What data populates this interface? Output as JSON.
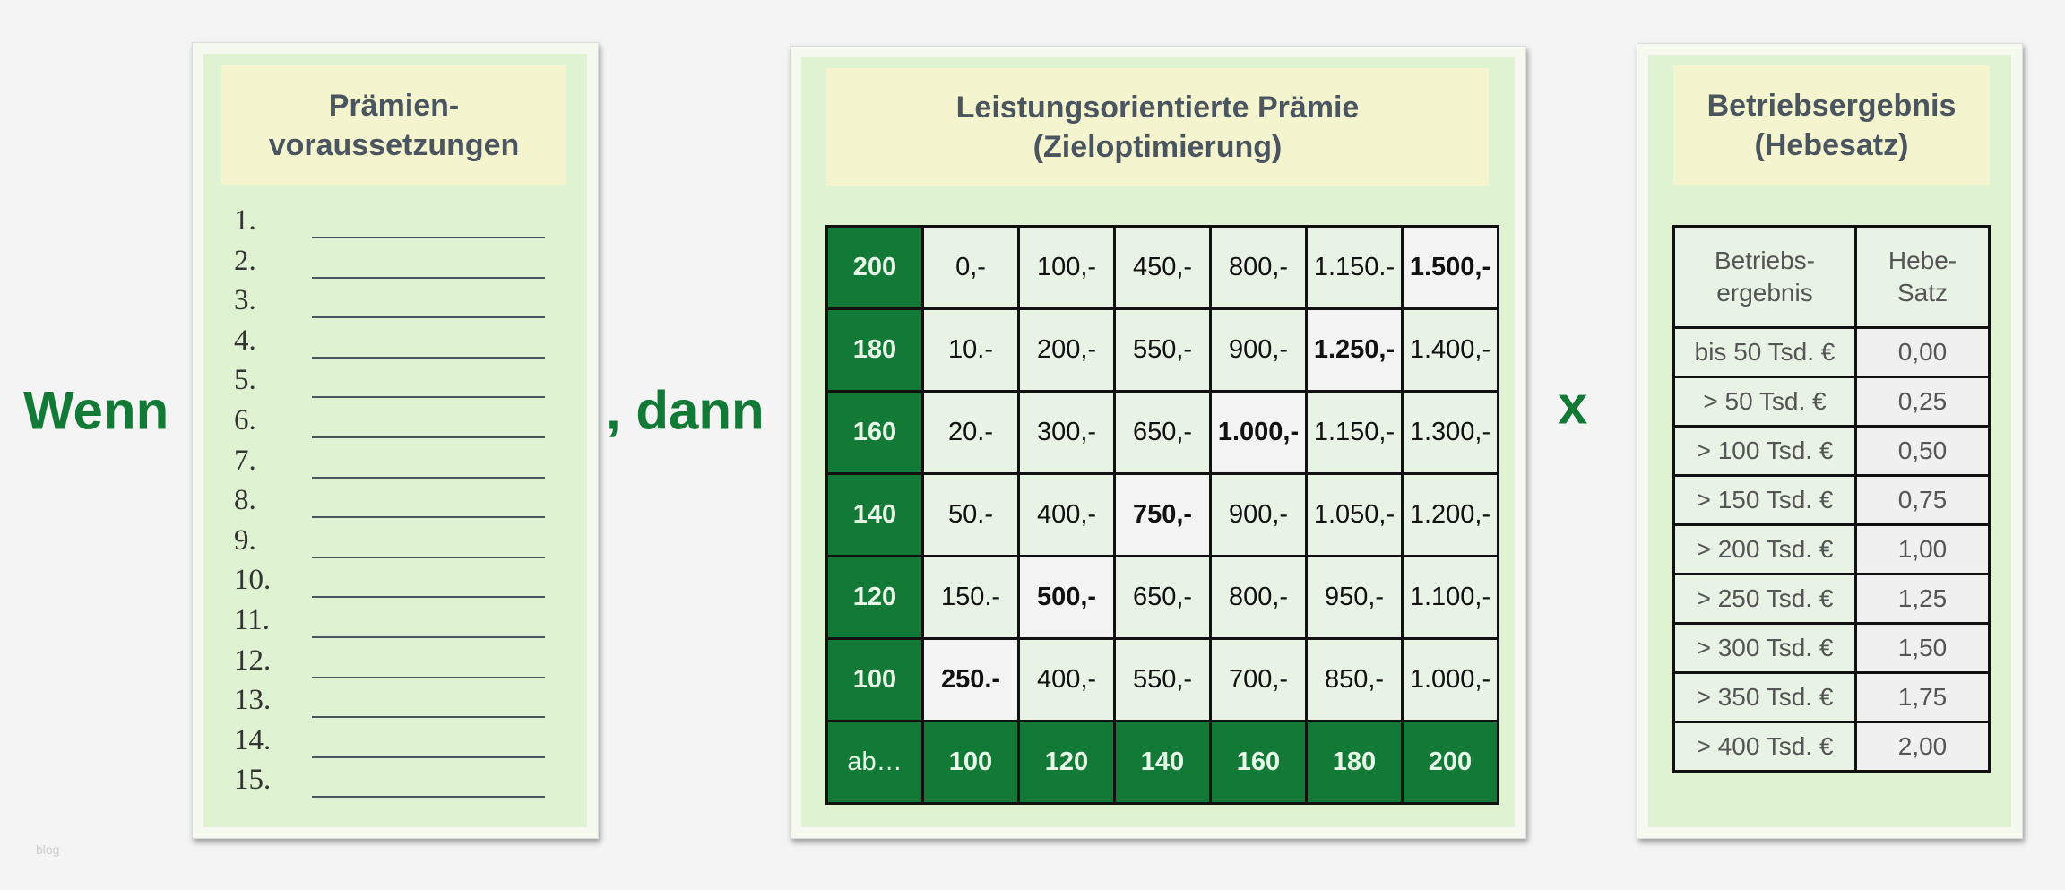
{
  "left": {
    "lead_word": "Wenn",
    "header": "Prämien-\nvoraussetzungen",
    "items": [
      "1.",
      "2.",
      "3.",
      "4.",
      "5.",
      "6.",
      "7.",
      "8.",
      "9.",
      "10.",
      "11.",
      "12.",
      "13.",
      "14.",
      "15."
    ]
  },
  "middle": {
    "lead_word": ", dann",
    "header": "Leistungsorientierte Prämie\n(Zieloptimierung)",
    "rows": [
      {
        "label": "200",
        "cells": [
          "0,-",
          "100,-",
          "450,-",
          "800,-",
          "1.150.-",
          "1.500,-"
        ],
        "bold": 5
      },
      {
        "label": "180",
        "cells": [
          "10.-",
          "200,-",
          "550,-",
          "900,-",
          "1.250,-",
          "1.400,-"
        ],
        "bold": 4
      },
      {
        "label": "160",
        "cells": [
          "20.-",
          "300,-",
          "650,-",
          "1.000,-",
          "1.150,-",
          "1.300,-"
        ],
        "bold": 3
      },
      {
        "label": "140",
        "cells": [
          "50.-",
          "400,-",
          "750,-",
          "900,-",
          "1.050,-",
          "1.200,-"
        ],
        "bold": 2
      },
      {
        "label": "120",
        "cells": [
          "150.-",
          "500,-",
          "650,-",
          "800,-",
          "950,-",
          "1.100,-"
        ],
        "bold": 1
      },
      {
        "label": "100",
        "cells": [
          "250.-",
          "400,-",
          "550,-",
          "700,-",
          "850,-",
          "1.000,-"
        ],
        "bold": 0
      }
    ],
    "footer_label": "ab…",
    "footer": [
      "100",
      "120",
      "140",
      "160",
      "180",
      "200"
    ]
  },
  "right": {
    "lead_word": "x",
    "header": "Betriebsergebnis\n(Hebesatz)",
    "col1": "Betriebs-\nergebnis",
    "col2": "Hebe-\nSatz",
    "rows": [
      [
        "bis 50 Tsd. €",
        "0,00"
      ],
      [
        "> 50 Tsd. €",
        "0,25"
      ],
      [
        "> 100 Tsd. €",
        "0,50"
      ],
      [
        "> 150 Tsd. €",
        "0,75"
      ],
      [
        "> 200 Tsd. €",
        "1,00"
      ],
      [
        "> 250 Tsd. €",
        "1,25"
      ],
      [
        "> 300 Tsd. €",
        "1,50"
      ],
      [
        "> 350 Tsd. €",
        "1,75"
      ],
      [
        "> 400 Tsd. €",
        "2,00"
      ]
    ]
  },
  "watermark": "blog",
  "colors": {
    "accent_green": "#127a36",
    "panel_bg": "#dff3d3",
    "header_bg": "#f4f5cf"
  }
}
